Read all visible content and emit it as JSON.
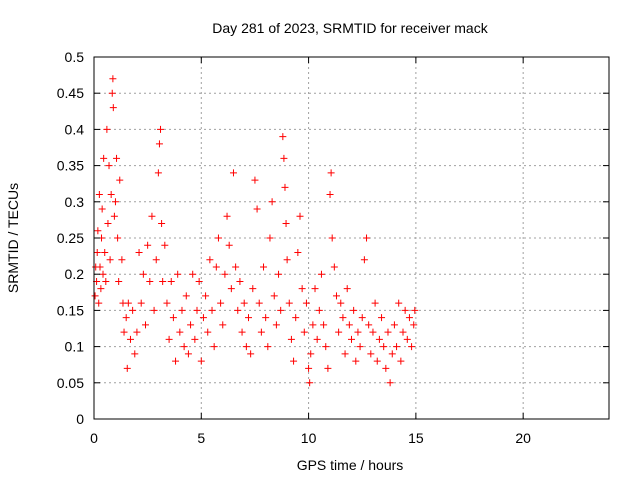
{
  "chart_data": {
    "type": "scatter",
    "title": "Day 281 of 2023, SRMTID for receiver mack",
    "xlabel": "GPS time / hours",
    "ylabel": "SRMTID / TECUs",
    "xlim": [
      0,
      24
    ],
    "ylim": [
      0,
      0.5
    ],
    "xticks": [
      0,
      5,
      10,
      15,
      20
    ],
    "yticks": [
      0,
      0.05,
      0.1,
      0.15,
      0.2,
      0.25,
      0.3,
      0.35,
      0.4,
      0.45,
      0.5
    ],
    "xtick_labels": [
      "0",
      "5",
      "10",
      "15",
      "20"
    ],
    "ytick_labels": [
      "0",
      "0.05",
      "0.1",
      "0.15",
      "0.2",
      "0.25",
      "0.3",
      "0.35",
      "0.4",
      "0.45",
      "0.5"
    ],
    "grid": true,
    "marker": "plus",
    "marker_color": "#ff0000",
    "series": [
      {
        "points": [
          [
            0.05,
            0.17
          ],
          [
            0.08,
            0.21
          ],
          [
            0.12,
            0.19
          ],
          [
            0.15,
            0.23
          ],
          [
            0.18,
            0.26
          ],
          [
            0.22,
            0.16
          ],
          [
            0.25,
            0.31
          ],
          [
            0.28,
            0.21
          ],
          [
            0.32,
            0.18
          ],
          [
            0.35,
            0.25
          ],
          [
            0.38,
            0.29
          ],
          [
            0.42,
            0.2
          ],
          [
            0.45,
            0.36
          ],
          [
            0.5,
            0.23
          ],
          [
            0.55,
            0.19
          ],
          [
            0.6,
            0.4
          ],
          [
            0.65,
            0.27
          ],
          [
            0.7,
            0.35
          ],
          [
            0.75,
            0.22
          ],
          [
            0.8,
            0.31
          ],
          [
            0.85,
            0.45
          ],
          [
            0.88,
            0.47
          ],
          [
            0.9,
            0.43
          ],
          [
            0.95,
            0.28
          ],
          [
            1.0,
            0.3
          ],
          [
            1.05,
            0.36
          ],
          [
            1.1,
            0.25
          ],
          [
            1.15,
            0.19
          ],
          [
            1.2,
            0.33
          ],
          [
            1.3,
            0.22
          ],
          [
            1.35,
            0.16
          ],
          [
            1.4,
            0.12
          ],
          [
            1.5,
            0.14
          ],
          [
            1.55,
            0.07
          ],
          [
            1.6,
            0.16
          ],
          [
            1.7,
            0.11
          ],
          [
            1.8,
            0.15
          ],
          [
            1.9,
            0.09
          ],
          [
            2.0,
            0.12
          ],
          [
            2.1,
            0.23
          ],
          [
            2.2,
            0.16
          ],
          [
            2.3,
            0.2
          ],
          [
            2.4,
            0.13
          ],
          [
            2.5,
            0.24
          ],
          [
            2.6,
            0.19
          ],
          [
            2.7,
            0.28
          ],
          [
            2.8,
            0.15
          ],
          [
            2.9,
            0.22
          ],
          [
            3.0,
            0.34
          ],
          [
            3.05,
            0.38
          ],
          [
            3.1,
            0.4
          ],
          [
            3.15,
            0.27
          ],
          [
            3.2,
            0.19
          ],
          [
            3.3,
            0.24
          ],
          [
            3.4,
            0.16
          ],
          [
            3.5,
            0.11
          ],
          [
            3.6,
            0.19
          ],
          [
            3.7,
            0.14
          ],
          [
            3.8,
            0.08
          ],
          [
            3.9,
            0.2
          ],
          [
            4.0,
            0.12
          ],
          [
            4.1,
            0.15
          ],
          [
            4.2,
            0.1
          ],
          [
            4.3,
            0.17
          ],
          [
            4.4,
            0.09
          ],
          [
            4.5,
            0.13
          ],
          [
            4.6,
            0.2
          ],
          [
            4.7,
            0.11
          ],
          [
            4.8,
            0.15
          ],
          [
            4.9,
            0.19
          ],
          [
            5.0,
            0.08
          ],
          [
            5.1,
            0.14
          ],
          [
            5.2,
            0.17
          ],
          [
            5.3,
            0.12
          ],
          [
            5.4,
            0.22
          ],
          [
            5.5,
            0.15
          ],
          [
            5.6,
            0.1
          ],
          [
            5.7,
            0.21
          ],
          [
            5.8,
            0.25
          ],
          [
            5.9,
            0.16
          ],
          [
            6.0,
            0.13
          ],
          [
            6.1,
            0.2
          ],
          [
            6.2,
            0.28
          ],
          [
            6.3,
            0.24
          ],
          [
            6.4,
            0.18
          ],
          [
            6.5,
            0.34
          ],
          [
            6.6,
            0.21
          ],
          [
            6.7,
            0.15
          ],
          [
            6.8,
            0.19
          ],
          [
            6.9,
            0.12
          ],
          [
            7.0,
            0.16
          ],
          [
            7.1,
            0.1
          ],
          [
            7.2,
            0.14
          ],
          [
            7.3,
            0.09
          ],
          [
            7.4,
            0.18
          ],
          [
            7.5,
            0.33
          ],
          [
            7.6,
            0.29
          ],
          [
            7.7,
            0.16
          ],
          [
            7.8,
            0.12
          ],
          [
            7.9,
            0.21
          ],
          [
            8.0,
            0.14
          ],
          [
            8.1,
            0.1
          ],
          [
            8.2,
            0.25
          ],
          [
            8.3,
            0.3
          ],
          [
            8.4,
            0.17
          ],
          [
            8.5,
            0.13
          ],
          [
            8.6,
            0.2
          ],
          [
            8.7,
            0.15
          ],
          [
            8.8,
            0.39
          ],
          [
            8.85,
            0.36
          ],
          [
            8.9,
            0.32
          ],
          [
            8.95,
            0.27
          ],
          [
            9.0,
            0.22
          ],
          [
            9.1,
            0.16
          ],
          [
            9.2,
            0.11
          ],
          [
            9.3,
            0.08
          ],
          [
            9.4,
            0.14
          ],
          [
            9.5,
            0.23
          ],
          [
            9.6,
            0.28
          ],
          [
            9.7,
            0.18
          ],
          [
            9.8,
            0.12
          ],
          [
            9.9,
            0.16
          ],
          [
            10.0,
            0.07
          ],
          [
            10.05,
            0.05
          ],
          [
            10.1,
            0.09
          ],
          [
            10.2,
            0.13
          ],
          [
            10.3,
            0.18
          ],
          [
            10.4,
            0.11
          ],
          [
            10.5,
            0.15
          ],
          [
            10.6,
            0.2
          ],
          [
            10.7,
            0.13
          ],
          [
            10.8,
            0.1
          ],
          [
            10.9,
            0.07
          ],
          [
            11.0,
            0.31
          ],
          [
            11.05,
            0.34
          ],
          [
            11.1,
            0.25
          ],
          [
            11.2,
            0.21
          ],
          [
            11.3,
            0.17
          ],
          [
            11.4,
            0.12
          ],
          [
            11.5,
            0.16
          ],
          [
            11.6,
            0.14
          ],
          [
            11.7,
            0.09
          ],
          [
            11.8,
            0.18
          ],
          [
            11.9,
            0.13
          ],
          [
            12.0,
            0.11
          ],
          [
            12.1,
            0.15
          ],
          [
            12.2,
            0.08
          ],
          [
            12.3,
            0.12
          ],
          [
            12.4,
            0.1
          ],
          [
            12.5,
            0.14
          ],
          [
            12.6,
            0.22
          ],
          [
            12.7,
            0.25
          ],
          [
            12.8,
            0.13
          ],
          [
            12.9,
            0.09
          ],
          [
            13.0,
            0.12
          ],
          [
            13.1,
            0.16
          ],
          [
            13.2,
            0.08
          ],
          [
            13.3,
            0.11
          ],
          [
            13.4,
            0.14
          ],
          [
            13.5,
            0.1
          ],
          [
            13.6,
            0.07
          ],
          [
            13.7,
            0.12
          ],
          [
            13.8,
            0.05
          ],
          [
            13.9,
            0.09
          ],
          [
            14.0,
            0.13
          ],
          [
            14.1,
            0.1
          ],
          [
            14.2,
            0.16
          ],
          [
            14.3,
            0.08
          ],
          [
            14.4,
            0.12
          ],
          [
            14.5,
            0.15
          ],
          [
            14.6,
            0.11
          ],
          [
            14.7,
            0.14
          ],
          [
            14.8,
            0.1
          ],
          [
            14.9,
            0.13
          ],
          [
            14.95,
            0.15
          ]
        ]
      }
    ]
  }
}
